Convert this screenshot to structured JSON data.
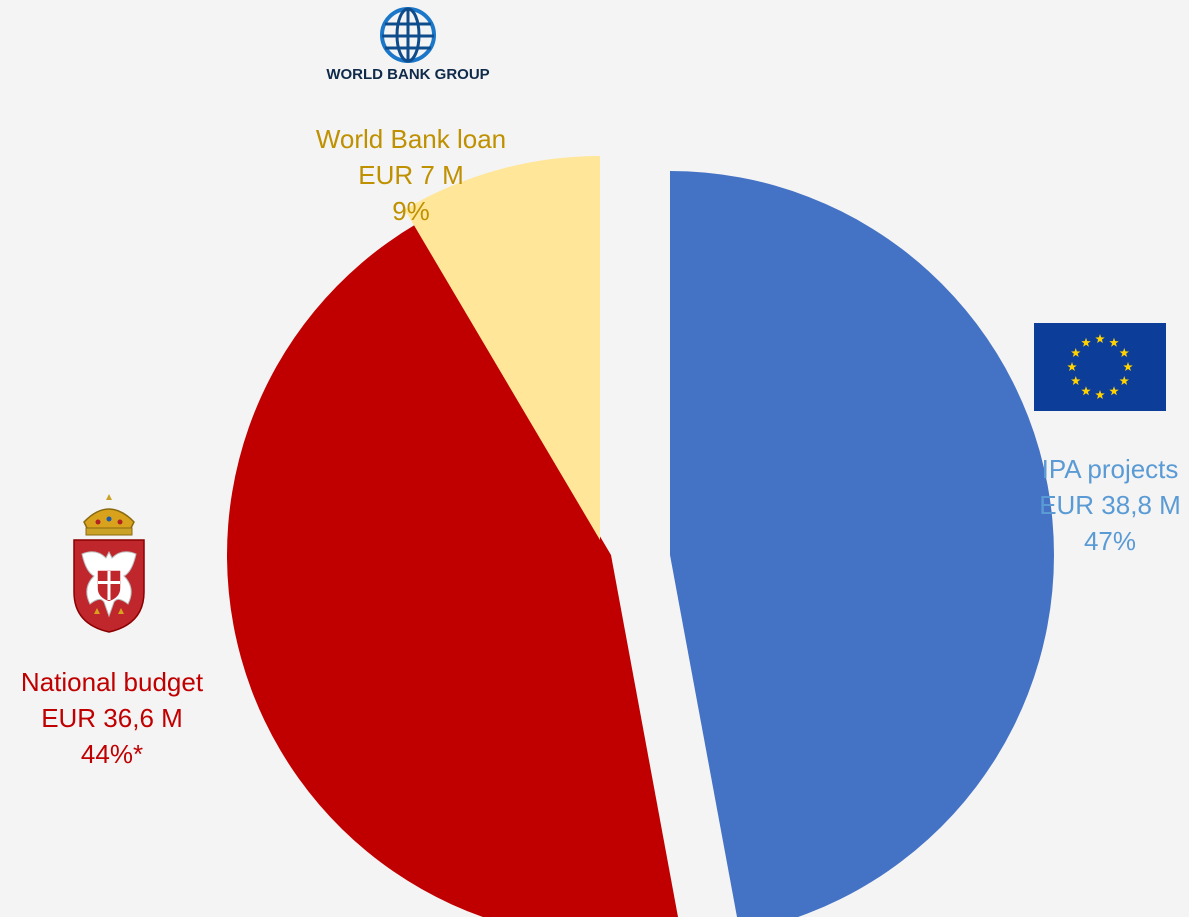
{
  "logos": {
    "world_bank": {
      "text": "WORLD BANK GROUP",
      "icon": "world-bank-globe-icon"
    },
    "eu_flag": {
      "icon": "eu-flag-icon",
      "bg": "#0b3d99",
      "star": "#ffd200"
    },
    "serbia_coat": {
      "icon": "serbian-coat-of-arms-icon"
    }
  },
  "chart_data": {
    "type": "pie",
    "title": "",
    "legend": "none",
    "slices": [
      {
        "label": "IPA projects",
        "amount": "EUR 38,8 M",
        "value": 38.8,
        "percent_label": "47%",
        "percent": 47,
        "color": "#4472c4",
        "label_color": "#5b9bd5",
        "exploded": false
      },
      {
        "label": "National budget",
        "amount": "EUR 36,6 M",
        "value": 36.6,
        "percent_label": "44%*",
        "percent": 44,
        "color": "#c00000",
        "label_color": "#c00000",
        "exploded": true
      },
      {
        "label": "World Bank loan",
        "amount": "EUR 7 M",
        "value": 7,
        "percent_label": "9%",
        "percent": 9,
        "color": "#ffe699",
        "label_color": "#bf9000",
        "exploded": true
      }
    ]
  }
}
